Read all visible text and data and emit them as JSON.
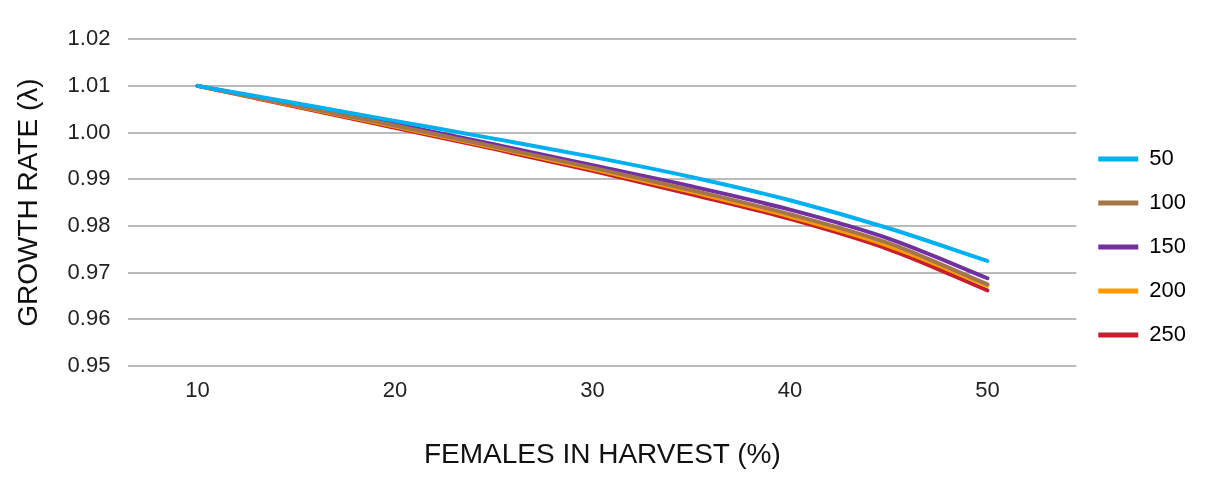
{
  "chart_data": {
    "type": "line",
    "xlabel": "FEMALES IN HARVEST (%)",
    "ylabel": "GROWTH RATE (λ)",
    "x": [
      10,
      15,
      20,
      25,
      30,
      35,
      40,
      45,
      50
    ],
    "series": [
      {
        "name": "50",
        "color": "#00b0f0",
        "values": [
          1.01,
          1.0063,
          1.0025,
          0.9987,
          0.9948,
          0.9905,
          0.9855,
          0.9795,
          0.9725
        ]
      },
      {
        "name": "100",
        "color": "#a5754a",
        "values": [
          1.01,
          1.0058,
          1.0015,
          0.997,
          0.9925,
          0.9877,
          0.9825,
          0.9763,
          0.9675
        ]
      },
      {
        "name": "150",
        "color": "#7030a0",
        "values": [
          1.01,
          1.006,
          1.0018,
          0.9975,
          0.993,
          0.9885,
          0.9835,
          0.9773,
          0.9688
        ]
      },
      {
        "name": "200",
        "color": "#ff9900",
        "values": [
          1.01,
          1.0057,
          1.0013,
          0.9968,
          0.9922,
          0.9873,
          0.982,
          0.9757,
          0.9672
        ]
      },
      {
        "name": "250",
        "color": "#c0202f",
        "values": [
          1.01,
          1.0055,
          1.001,
          0.9965,
          0.9918,
          0.9868,
          0.9815,
          0.975,
          0.9662
        ]
      }
    ],
    "xlim": [
      6.5,
      54.5
    ],
    "xticks": [
      10,
      20,
      30,
      40,
      50
    ],
    "ylim": [
      0.95,
      1.02
    ],
    "yticks": [
      0.95,
      0.96,
      0.97,
      0.98,
      0.99,
      {
        "value": 1.0,
        "label": "1.00"
      },
      1.01,
      1.02
    ],
    "grid": "y",
    "legend": "right",
    "marker": "none",
    "line_style": "solid"
  }
}
